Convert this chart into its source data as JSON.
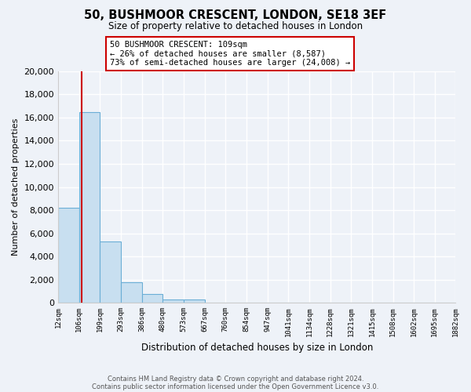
{
  "title": "50, BUSHMOOR CRESCENT, LONDON, SE18 3EF",
  "subtitle": "Size of property relative to detached houses in London",
  "xlabel": "Distribution of detached houses by size in London",
  "ylabel": "Number of detached properties",
  "bar_values": [
    8200,
    16500,
    5300,
    1750,
    750,
    250,
    250,
    0,
    0,
    0,
    0,
    0,
    0,
    0,
    0,
    0,
    0,
    0,
    0
  ],
  "tick_labels": [
    "12sqm",
    "106sqm",
    "199sqm",
    "293sqm",
    "386sqm",
    "480sqm",
    "573sqm",
    "667sqm",
    "760sqm",
    "854sqm",
    "947sqm",
    "1041sqm",
    "1134sqm",
    "1228sqm",
    "1321sqm",
    "1415sqm",
    "1508sqm",
    "1602sqm",
    "1695sqm",
    "1882sqm"
  ],
  "bar_color": "#c8dff0",
  "bar_edge_color": "#6baed6",
  "property_line_x": 1.12,
  "property_line_color": "#cc0000",
  "ylim": [
    0,
    20000
  ],
  "yticks": [
    0,
    2000,
    4000,
    6000,
    8000,
    10000,
    12000,
    14000,
    16000,
    18000,
    20000
  ],
  "annotation_text_line1": "50 BUSHMOOR CRESCENT: 109sqm",
  "annotation_text_line2": "← 26% of detached houses are smaller (8,587)",
  "annotation_text_line3": "73% of semi-detached houses are larger (24,008) →",
  "footer_line1": "Contains HM Land Registry data © Crown copyright and database right 2024.",
  "footer_line2": "Contains public sector information licensed under the Open Government Licence v3.0.",
  "bg_color": "#eef2f8",
  "plot_bg_color": "#eef2f8",
  "grid_color": "#ffffff"
}
